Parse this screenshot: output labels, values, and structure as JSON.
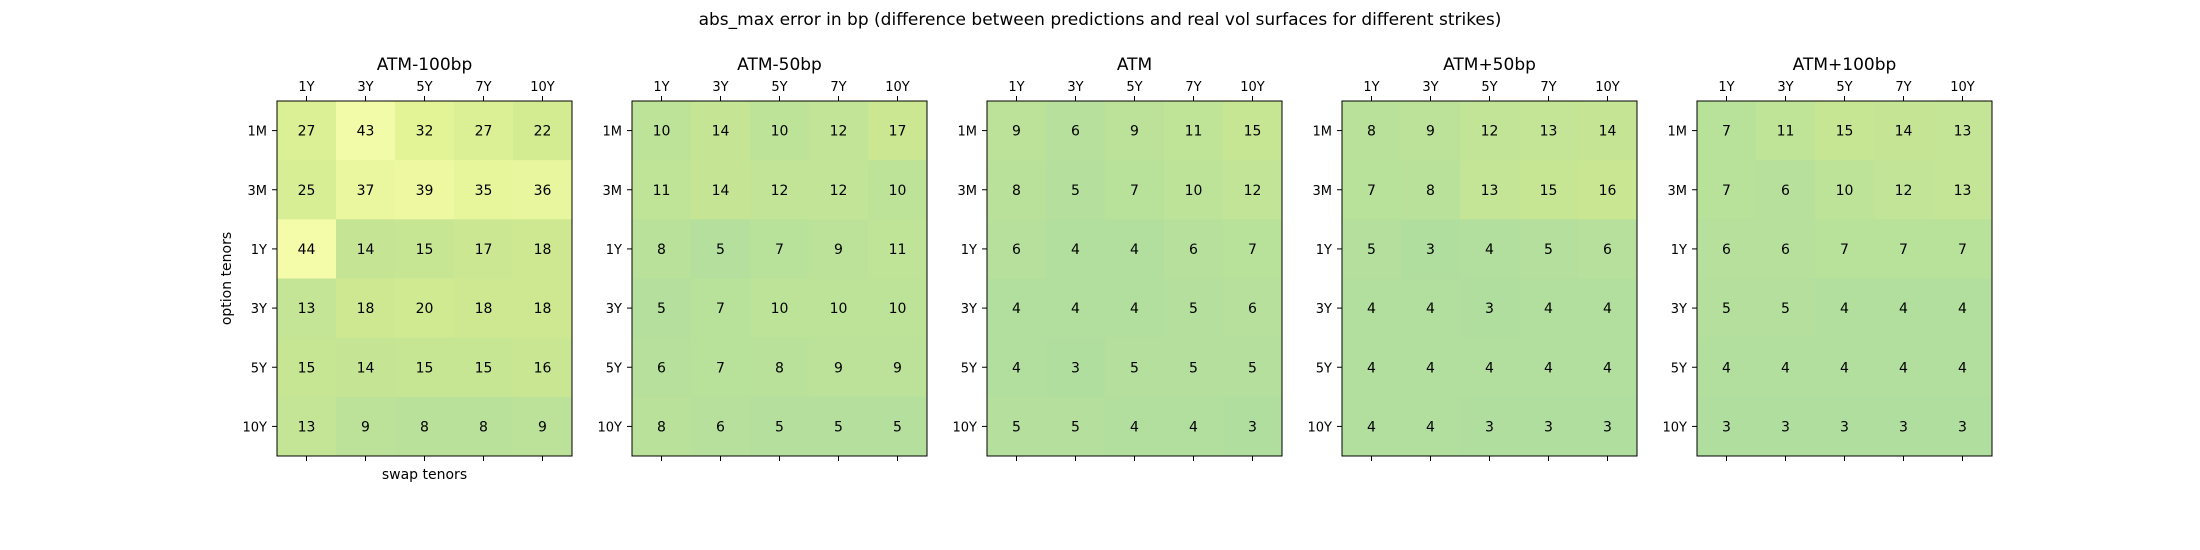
{
  "chart_data": {
    "type": "heatmap",
    "title": "abs_max error in bp (difference between predictions and real vol surfaces for different strikes)",
    "xlabel": "swap tenors",
    "ylabel": "option tenors",
    "x_categories": [
      "1Y",
      "3Y",
      "5Y",
      "7Y",
      "10Y"
    ],
    "y_categories": [
      "1M",
      "3M",
      "1Y",
      "3Y",
      "5Y",
      "10Y"
    ],
    "color_range": [
      0,
      100
    ],
    "colormap": "green-yellow",
    "panels": [
      {
        "title": "ATM-100bp",
        "values": [
          [
            27,
            43,
            32,
            27,
            22
          ],
          [
            25,
            37,
            39,
            35,
            36
          ],
          [
            44,
            14,
            15,
            17,
            18
          ],
          [
            13,
            18,
            20,
            18,
            18
          ],
          [
            15,
            14,
            15,
            15,
            16
          ],
          [
            13,
            9,
            8,
            8,
            9
          ]
        ]
      },
      {
        "title": "ATM-50bp",
        "values": [
          [
            10,
            14,
            10,
            12,
            17
          ],
          [
            11,
            14,
            12,
            12,
            10
          ],
          [
            8,
            5,
            7,
            9,
            11
          ],
          [
            5,
            7,
            10,
            10,
            10
          ],
          [
            6,
            7,
            8,
            9,
            9
          ],
          [
            8,
            6,
            5,
            5,
            5
          ]
        ]
      },
      {
        "title": "ATM",
        "values": [
          [
            9,
            6,
            9,
            11,
            15
          ],
          [
            8,
            5,
            7,
            10,
            12
          ],
          [
            6,
            4,
            4,
            6,
            7
          ],
          [
            4,
            4,
            4,
            5,
            6
          ],
          [
            4,
            3,
            5,
            5,
            5
          ],
          [
            5,
            5,
            4,
            4,
            3
          ]
        ]
      },
      {
        "title": "ATM+50bp",
        "values": [
          [
            8,
            9,
            12,
            13,
            14
          ],
          [
            7,
            8,
            13,
            15,
            16
          ],
          [
            5,
            3,
            4,
            5,
            6
          ],
          [
            4,
            4,
            3,
            4,
            4
          ],
          [
            4,
            4,
            4,
            4,
            4
          ],
          [
            4,
            4,
            3,
            3,
            3
          ]
        ]
      },
      {
        "title": "ATM+100bp",
        "values": [
          [
            7,
            11,
            15,
            14,
            13
          ],
          [
            7,
            6,
            10,
            12,
            13
          ],
          [
            6,
            6,
            7,
            7,
            7
          ],
          [
            5,
            5,
            4,
            4,
            4
          ],
          [
            4,
            4,
            4,
            4,
            4
          ],
          [
            3,
            3,
            3,
            3,
            3
          ]
        ]
      }
    ]
  }
}
